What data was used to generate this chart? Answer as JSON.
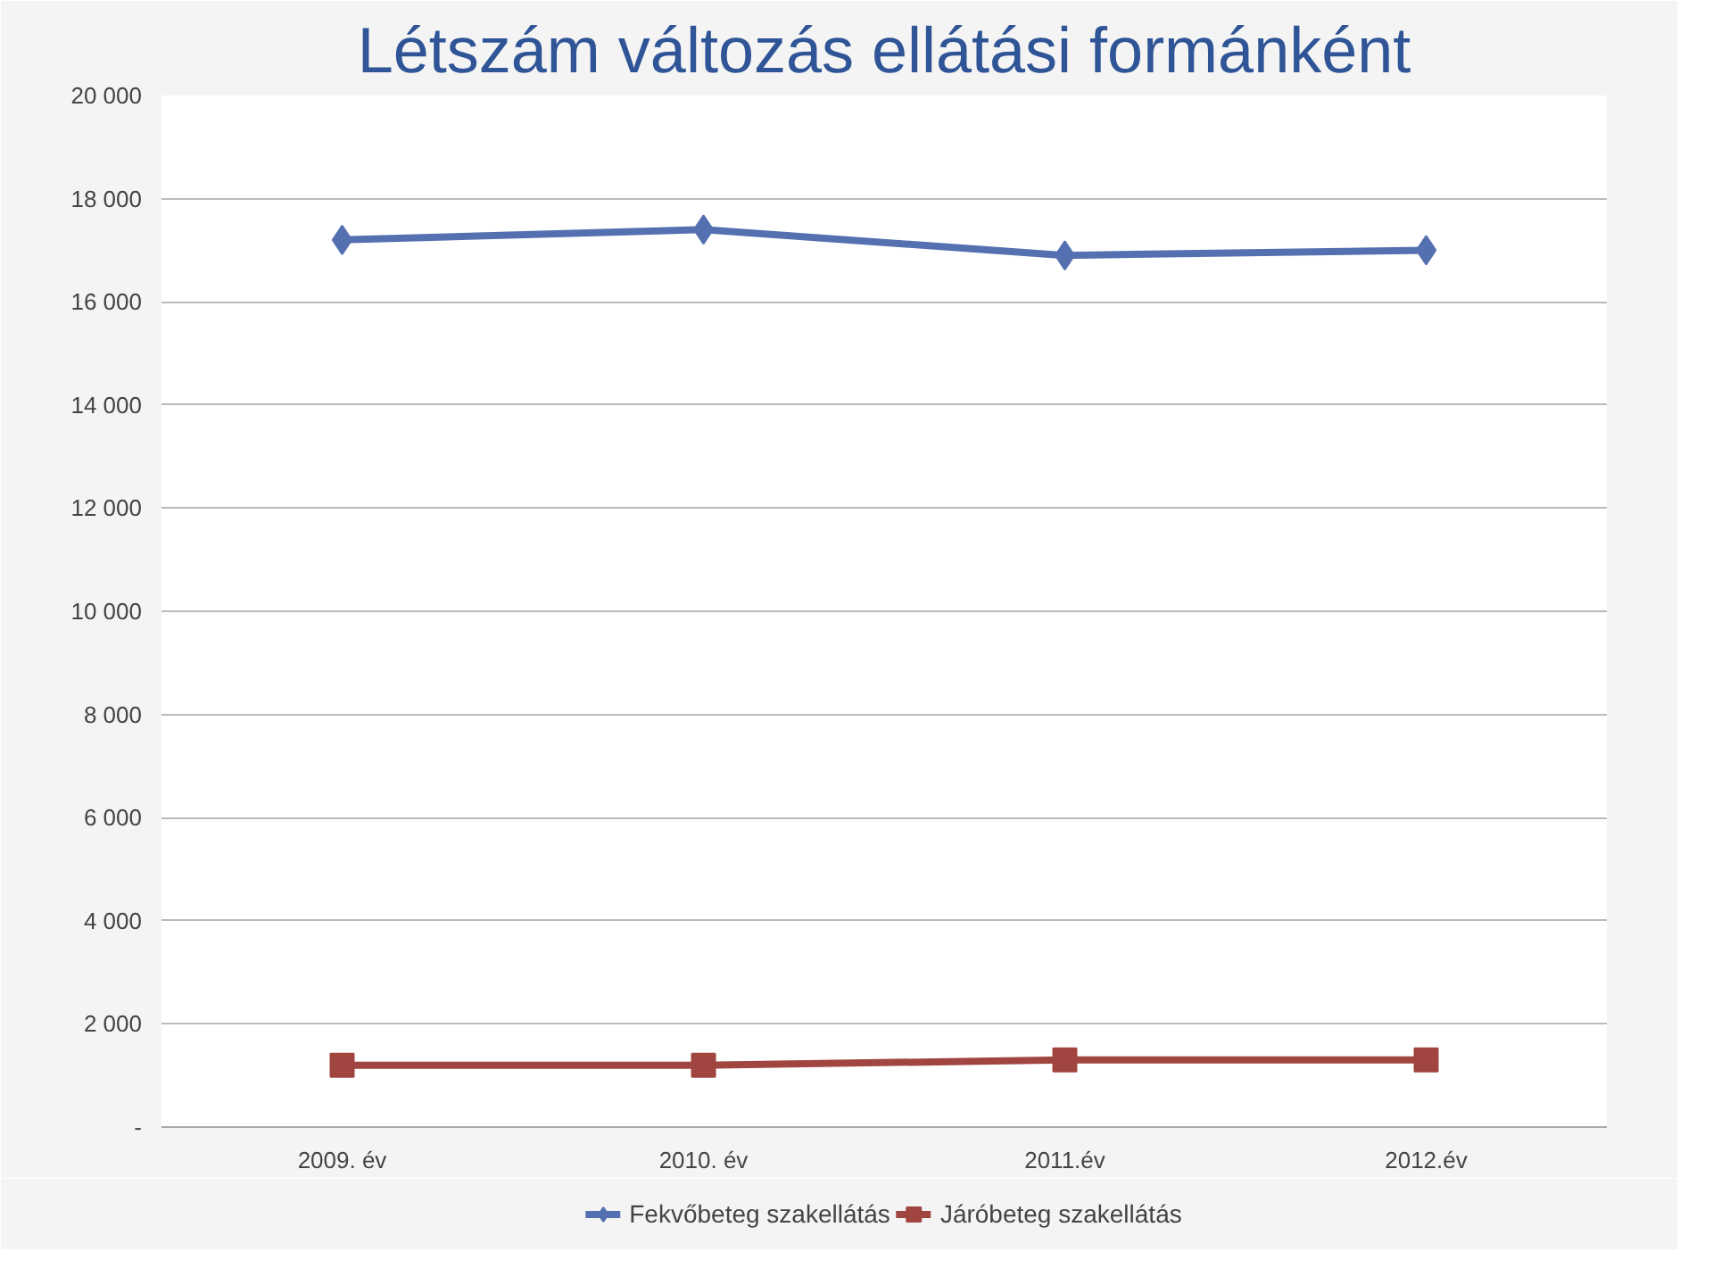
{
  "chart_data": {
    "type": "line",
    "title": "Létszám változás ellátási formánként",
    "categories": [
      "2009. év",
      "2010. év",
      "2011.év",
      "2012.év"
    ],
    "series": [
      {
        "name": "Fekvőbeteg szakellátás",
        "color": "#5470b0",
        "marker": "diamond",
        "values": [
          17200,
          17400,
          16900,
          17000
        ]
      },
      {
        "name": "Járóbeteg szakellátás",
        "color": "#a0453f",
        "marker": "square",
        "values": [
          1200,
          1200,
          1300,
          1300
        ]
      }
    ],
    "ylim": [
      0,
      20000
    ],
    "yticks": [
      {
        "value": 0,
        "label": "-"
      },
      {
        "value": 2000,
        "label": "2 000"
      },
      {
        "value": 4000,
        "label": "4 000"
      },
      {
        "value": 6000,
        "label": "6 000"
      },
      {
        "value": 8000,
        "label": "8 000"
      },
      {
        "value": 10000,
        "label": "10 000"
      },
      {
        "value": 12000,
        "label": "12 000"
      },
      {
        "value": 14000,
        "label": "14 000"
      },
      {
        "value": 16000,
        "label": "16 000"
      },
      {
        "value": 18000,
        "label": "18 000"
      },
      {
        "value": 20000,
        "label": "20 000"
      }
    ],
    "grid": "y",
    "legend": "bottom",
    "line_style": "solid"
  }
}
